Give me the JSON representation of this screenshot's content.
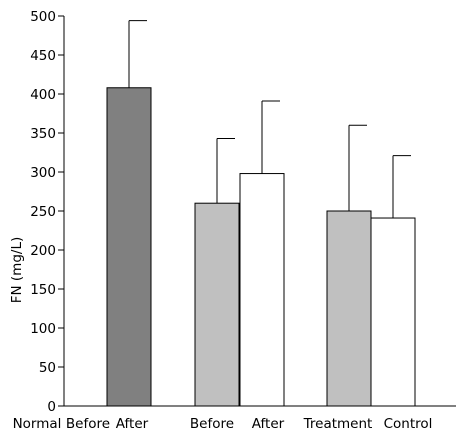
{
  "chart_data": {
    "type": "bar",
    "title": "",
    "xlabel": "",
    "ylabel": "FN (mg/L)",
    "ylim": [
      0,
      500
    ],
    "yticks": [
      0,
      50,
      100,
      150,
      200,
      250,
      300,
      350,
      400,
      450,
      500
    ],
    "grid": false,
    "legend": "none",
    "bars": [
      {
        "value": 408,
        "error": 86,
        "fill": "#808080"
      },
      {
        "value": 260,
        "error": 83,
        "fill": "#c0c0c0"
      },
      {
        "value": 298,
        "error": 93,
        "fill": "#ffffff"
      },
      {
        "value": 250,
        "error": 110,
        "fill": "#c0c0c0"
      },
      {
        "value": 241,
        "error": 80,
        "fill": "#ffffff"
      }
    ],
    "x_labels": [
      "Normal",
      "Before",
      "After",
      "Before",
      "After",
      "Treatment",
      "Control"
    ]
  }
}
